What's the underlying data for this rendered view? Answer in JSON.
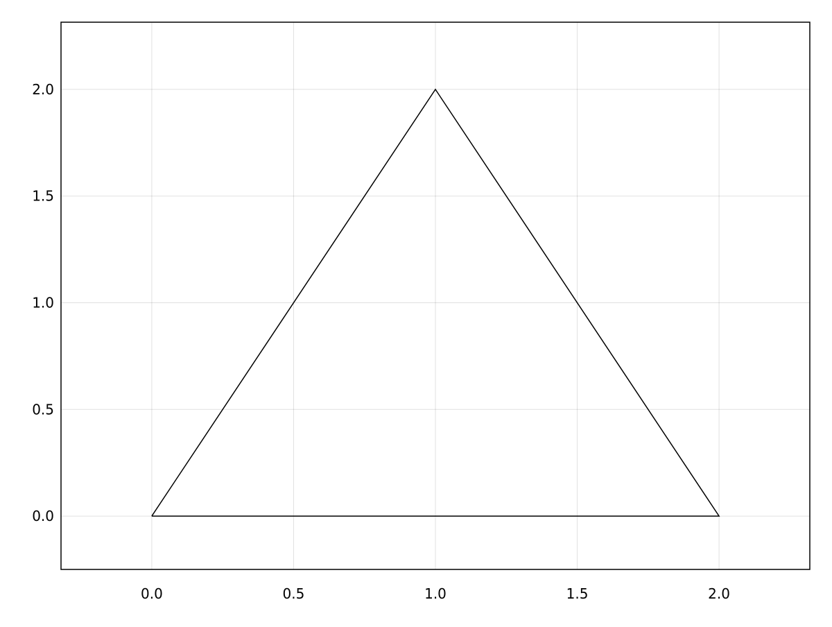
{
  "chart_data": {
    "type": "line",
    "title": "",
    "xlabel": "",
    "ylabel": "",
    "xlim": [
      -0.32,
      2.32
    ],
    "ylim": [
      -0.25,
      2.315
    ],
    "grid": true,
    "x_ticks": [
      0.0,
      0.5,
      1.0,
      1.5,
      2.0
    ],
    "y_ticks": [
      0.0,
      0.5,
      1.0,
      1.5,
      2.0
    ],
    "x_tick_labels": [
      "0.0",
      "0.5",
      "1.0",
      "1.5",
      "2.0"
    ],
    "y_tick_labels": [
      "0.0",
      "0.5",
      "1.0",
      "1.5",
      "2.0"
    ],
    "series": [
      {
        "x": [
          0,
          1,
          2,
          0
        ],
        "y": [
          0,
          2,
          0,
          0
        ],
        "color": "#000000"
      }
    ]
  }
}
